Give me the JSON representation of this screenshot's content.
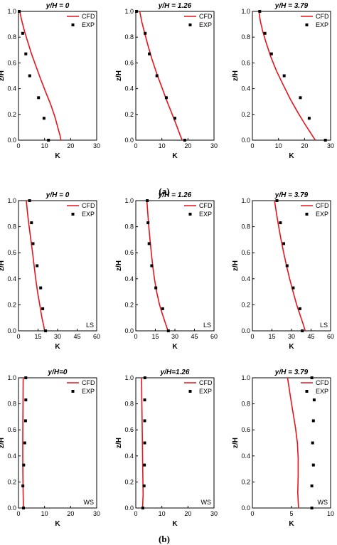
{
  "captions": {
    "a": "(a)",
    "b": "(b)"
  },
  "colors": {
    "cfd": "#e8141b",
    "exp": "#000000",
    "axis": "#000000"
  },
  "chart_data": [
    {
      "type": "line",
      "panel": "a-1",
      "title": "y/H = 0",
      "xlabel": "K",
      "ylabel": "z/H",
      "xlim": [
        0,
        30
      ],
      "ylim": [
        0,
        1.0
      ],
      "xticks": [
        0,
        10,
        20,
        30
      ],
      "yticks": [
        0.0,
        0.2,
        0.4,
        0.6,
        0.8,
        1.0
      ],
      "grid": false,
      "legend": "top-right",
      "tag": "",
      "series": [
        {
          "name": "CFD",
          "style": "line",
          "points": [
            [
              0.5,
              1.0
            ],
            [
              1.0,
              0.95
            ],
            [
              1.6,
              0.9
            ],
            [
              2.4,
              0.84
            ],
            [
              3.6,
              0.76
            ],
            [
              5.0,
              0.67
            ],
            [
              6.6,
              0.58
            ],
            [
              8.4,
              0.48
            ],
            [
              10.3,
              0.38
            ],
            [
              12.3,
              0.28
            ],
            [
              14.0,
              0.18
            ],
            [
              15.2,
              0.09
            ],
            [
              16.0,
              0.03
            ],
            [
              16.3,
              0.0
            ]
          ]
        },
        {
          "name": "EXP",
          "style": "marker",
          "points": [
            [
              0.3,
              1.0
            ],
            [
              1.6,
              0.83
            ],
            [
              2.8,
              0.67
            ],
            [
              4.3,
              0.5
            ],
            [
              7.7,
              0.33
            ],
            [
              9.8,
              0.17
            ],
            [
              11.5,
              0.0
            ]
          ]
        }
      ]
    },
    {
      "type": "line",
      "panel": "a-2",
      "title": "y/H = 1.26",
      "xlabel": "K",
      "ylabel": "z/H",
      "xlim": [
        0,
        30
      ],
      "ylim": [
        0,
        1.0
      ],
      "xticks": [
        0,
        10,
        20,
        30
      ],
      "yticks": [
        0.0,
        0.2,
        0.4,
        0.6,
        0.8,
        1.0
      ],
      "grid": false,
      "legend": "top-right",
      "tag": "",
      "series": [
        {
          "name": "CFD",
          "style": "line",
          "points": [
            [
              1.5,
              1.0
            ],
            [
              2.3,
              0.92
            ],
            [
              3.3,
              0.84
            ],
            [
              4.6,
              0.74
            ],
            [
              6.2,
              0.63
            ],
            [
              8.0,
              0.52
            ],
            [
              10.0,
              0.41
            ],
            [
              12.0,
              0.3
            ],
            [
              14.0,
              0.2
            ],
            [
              15.7,
              0.11
            ],
            [
              17.0,
              0.04
            ],
            [
              17.8,
              0.0
            ]
          ]
        },
        {
          "name": "EXP",
          "style": "marker",
          "points": [
            [
              0.3,
              1.0
            ],
            [
              3.6,
              0.83
            ],
            [
              5.2,
              0.67
            ],
            [
              8.1,
              0.5
            ],
            [
              11.7,
              0.33
            ],
            [
              15.0,
              0.17
            ],
            [
              18.8,
              0.0
            ]
          ]
        }
      ]
    },
    {
      "type": "line",
      "panel": "a-3",
      "title": "y/H = 3.79",
      "xlabel": "K",
      "ylabel": "z/H",
      "xlim": [
        0,
        30
      ],
      "ylim": [
        0,
        1.0
      ],
      "xticks": [
        0,
        10,
        20,
        30
      ],
      "yticks": [
        0.0,
        0.2,
        0.4,
        0.6,
        0.8,
        1.0
      ],
      "grid": false,
      "legend": "top-right",
      "tag": "",
      "series": [
        {
          "name": "CFD",
          "style": "line",
          "points": [
            [
              2.5,
              1.0
            ],
            [
              3.0,
              0.93
            ],
            [
              3.9,
              0.85
            ],
            [
              5.2,
              0.76
            ],
            [
              7.0,
              0.65
            ],
            [
              9.2,
              0.54
            ],
            [
              11.8,
              0.43
            ],
            [
              14.5,
              0.32
            ],
            [
              17.3,
              0.22
            ],
            [
              20.0,
              0.13
            ],
            [
              22.2,
              0.06
            ],
            [
              23.8,
              0.01
            ],
            [
              24.2,
              0.0
            ]
          ]
        },
        {
          "name": "EXP",
          "style": "marker",
          "points": [
            [
              2.8,
              1.0
            ],
            [
              4.8,
              0.83
            ],
            [
              7.3,
              0.67
            ],
            [
              12.2,
              0.5
            ],
            [
              18.4,
              0.33
            ],
            [
              21.8,
              0.17
            ],
            [
              28.0,
              0.0
            ]
          ]
        }
      ]
    },
    {
      "type": "line",
      "panel": "b-LS-1",
      "title": "y/H = 0",
      "xlabel": "K",
      "ylabel": "z/H",
      "xlim": [
        0,
        60
      ],
      "ylim": [
        0,
        1.0
      ],
      "xticks": [
        0,
        15,
        30,
        45,
        60
      ],
      "yticks": [
        0.0,
        0.2,
        0.4,
        0.6,
        0.8,
        1.0
      ],
      "grid": false,
      "legend": "top-right",
      "tag": "LS",
      "series": [
        {
          "name": "CFD",
          "style": "line",
          "points": [
            [
              6.0,
              1.0
            ],
            [
              7.0,
              0.9
            ],
            [
              8.2,
              0.8
            ],
            [
              9.5,
              0.7
            ],
            [
              10.8,
              0.6
            ],
            [
              12.0,
              0.5
            ],
            [
              13.2,
              0.4
            ],
            [
              14.6,
              0.3
            ],
            [
              16.3,
              0.2
            ],
            [
              18.0,
              0.1
            ],
            [
              19.5,
              0.03
            ],
            [
              20.0,
              0.0
            ]
          ]
        },
        {
          "name": "EXP",
          "style": "marker",
          "points": [
            [
              8.5,
              1.0
            ],
            [
              10.0,
              0.83
            ],
            [
              11.2,
              0.67
            ],
            [
              14.3,
              0.5
            ],
            [
              17.0,
              0.33
            ],
            [
              18.6,
              0.17
            ],
            [
              20.8,
              0.0
            ]
          ]
        }
      ]
    },
    {
      "type": "line",
      "panel": "b-LS-2",
      "title": "y/H = 1.26",
      "xlabel": "K",
      "ylabel": "z/H",
      "xlim": [
        0,
        60
      ],
      "ylim": [
        0,
        1.0
      ],
      "xticks": [
        0,
        15,
        30,
        45,
        60
      ],
      "yticks": [
        0.0,
        0.2,
        0.4,
        0.6,
        0.8,
        1.0
      ],
      "grid": false,
      "legend": "top-right",
      "tag": "LS",
      "series": [
        {
          "name": "CFD",
          "style": "line",
          "points": [
            [
              8.5,
              1.0
            ],
            [
              9.2,
              0.9
            ],
            [
              10.0,
              0.8
            ],
            [
              10.9,
              0.7
            ],
            [
              11.9,
              0.6
            ],
            [
              13.0,
              0.5
            ],
            [
              14.3,
              0.4
            ],
            [
              16.0,
              0.3
            ],
            [
              18.2,
              0.2
            ],
            [
              20.7,
              0.12
            ],
            [
              23.0,
              0.05
            ],
            [
              24.7,
              0.0
            ]
          ]
        },
        {
          "name": "EXP",
          "style": "marker",
          "points": [
            [
              8.8,
              1.0
            ],
            [
              9.4,
              0.83
            ],
            [
              10.2,
              0.67
            ],
            [
              12.2,
              0.5
            ],
            [
              15.4,
              0.33
            ],
            [
              20.6,
              0.17
            ],
            [
              25.0,
              0.0
            ]
          ]
        }
      ]
    },
    {
      "type": "line",
      "panel": "b-LS-3",
      "title": "y/H = 3.79",
      "xlabel": "K",
      "ylabel": "z/H",
      "xlim": [
        0,
        60
      ],
      "ylim": [
        0,
        1.0
      ],
      "xticks": [
        0,
        15,
        30,
        45,
        60
      ],
      "yticks": [
        0.0,
        0.2,
        0.4,
        0.6,
        0.8,
        1.0
      ],
      "grid": false,
      "legend": "top-right",
      "tag": "LS",
      "series": [
        {
          "name": "CFD",
          "style": "line",
          "points": [
            [
              17.0,
              1.0
            ],
            [
              18.5,
              0.9
            ],
            [
              20.2,
              0.8
            ],
            [
              22.0,
              0.7
            ],
            [
              24.0,
              0.6
            ],
            [
              26.2,
              0.5
            ],
            [
              28.6,
              0.4
            ],
            [
              31.2,
              0.3
            ],
            [
              34.0,
              0.2
            ],
            [
              37.0,
              0.11
            ],
            [
              39.3,
              0.04
            ],
            [
              40.5,
              0.0
            ]
          ]
        },
        {
          "name": "EXP",
          "style": "marker",
          "points": [
            [
              18.8,
              1.0
            ],
            [
              21.5,
              0.83
            ],
            [
              24.0,
              0.67
            ],
            [
              26.6,
              0.5
            ],
            [
              31.3,
              0.33
            ],
            [
              36.5,
              0.17
            ],
            [
              38.3,
              0.0
            ]
          ]
        }
      ]
    },
    {
      "type": "line",
      "panel": "b-WS-1",
      "title": "y/H=0",
      "xlabel": "K",
      "ylabel": "z/H",
      "xlim": [
        0,
        30
      ],
      "ylim": [
        0,
        1.0
      ],
      "xticks": [
        0,
        10,
        20,
        30
      ],
      "yticks": [
        0.0,
        0.2,
        0.4,
        0.6,
        0.8,
        1.0
      ],
      "grid": false,
      "legend": "top-right",
      "tag": "WS",
      "series": [
        {
          "name": "CFD",
          "style": "line",
          "points": [
            [
              1.8,
              1.0
            ],
            [
              1.75,
              0.85
            ],
            [
              1.7,
              0.7
            ],
            [
              1.65,
              0.55
            ],
            [
              1.65,
              0.4
            ],
            [
              1.7,
              0.25
            ],
            [
              1.8,
              0.1
            ],
            [
              1.9,
              0.0
            ]
          ]
        },
        {
          "name": "EXP",
          "style": "marker",
          "points": [
            [
              2.8,
              1.0
            ],
            [
              2.8,
              0.83
            ],
            [
              2.7,
              0.67
            ],
            [
              2.4,
              0.5
            ],
            [
              2.0,
              0.33
            ],
            [
              1.7,
              0.17
            ],
            [
              1.9,
              0.0
            ]
          ]
        }
      ]
    },
    {
      "type": "line",
      "panel": "b-WS-2",
      "title": "y/H=1.26",
      "xlabel": "K",
      "ylabel": "z/H",
      "xlim": [
        0,
        30
      ],
      "ylim": [
        0,
        1.0
      ],
      "xticks": [
        0,
        10,
        20,
        30
      ],
      "yticks": [
        0.0,
        0.2,
        0.4,
        0.6,
        0.8,
        1.0
      ],
      "grid": false,
      "legend": "top-right",
      "tag": "WS",
      "series": [
        {
          "name": "CFD",
          "style": "line",
          "points": [
            [
              2.2,
              1.0
            ],
            [
              2.3,
              0.85
            ],
            [
              2.4,
              0.7
            ],
            [
              2.5,
              0.55
            ],
            [
              2.6,
              0.4
            ],
            [
              2.7,
              0.25
            ],
            [
              2.8,
              0.1
            ],
            [
              2.6,
              0.0
            ]
          ]
        },
        {
          "name": "EXP",
          "style": "marker",
          "points": [
            [
              3.5,
              1.0
            ],
            [
              3.4,
              0.83
            ],
            [
              3.4,
              0.67
            ],
            [
              3.4,
              0.5
            ],
            [
              3.3,
              0.33
            ],
            [
              3.2,
              0.17
            ],
            [
              2.7,
              0.0
            ]
          ]
        }
      ]
    },
    {
      "type": "line",
      "panel": "b-WS-3",
      "title": "y/H = 3.79",
      "xlabel": "K",
      "ylabel": "z/H",
      "xlim": [
        0,
        10
      ],
      "ylim": [
        0,
        1.0
      ],
      "xticks": [
        0,
        5,
        10
      ],
      "yticks": [
        0.0,
        0.2,
        0.4,
        0.6,
        0.8,
        1.0
      ],
      "grid": false,
      "legend": "top-right",
      "tag": "WS",
      "series": [
        {
          "name": "CFD",
          "style": "line",
          "points": [
            [
              4.5,
              1.0
            ],
            [
              4.8,
              0.88
            ],
            [
              5.15,
              0.75
            ],
            [
              5.5,
              0.62
            ],
            [
              5.75,
              0.5
            ],
            [
              5.85,
              0.38
            ],
            [
              5.85,
              0.25
            ],
            [
              5.8,
              0.12
            ],
            [
              5.9,
              0.0
            ]
          ]
        },
        {
          "name": "EXP",
          "style": "marker",
          "points": [
            [
              7.6,
              1.0
            ],
            [
              7.9,
              0.83
            ],
            [
              7.8,
              0.67
            ],
            [
              7.7,
              0.5
            ],
            [
              7.8,
              0.33
            ],
            [
              7.6,
              0.17
            ],
            [
              7.6,
              0.0
            ]
          ]
        }
      ]
    }
  ]
}
